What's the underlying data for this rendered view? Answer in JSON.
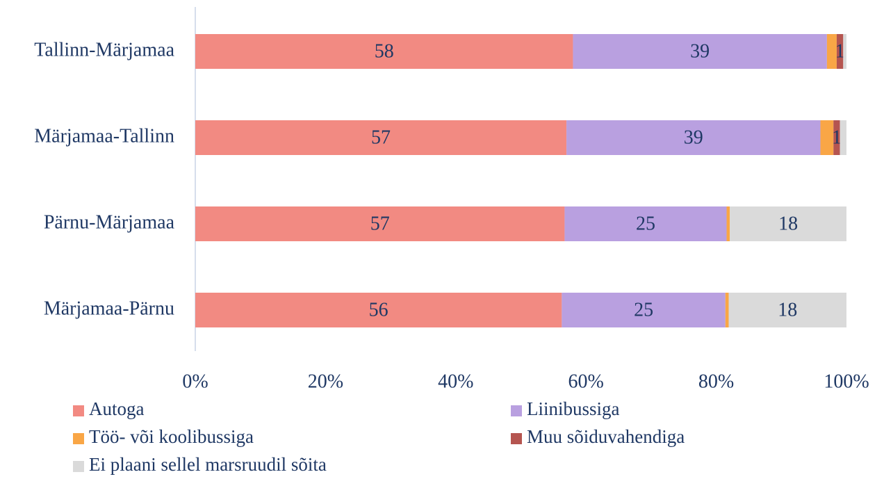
{
  "chart_data": {
    "type": "bar",
    "orientation": "horizontal",
    "stack": "percent",
    "categories": [
      "Tallinn-Märjamaa",
      "Märjamaa-Tallinn",
      "Pärnu-Märjamaa",
      "Märjamaa-Pärnu"
    ],
    "series": [
      {
        "name": "Autoga",
        "color": "#f28a82",
        "values": [
          58,
          57,
          57,
          56
        ],
        "value_labels": [
          "58",
          "57",
          "57",
          "56"
        ]
      },
      {
        "name": "Liinibussiga",
        "color": "#b9a0e0",
        "values": [
          39,
          39,
          25,
          25
        ],
        "value_labels": [
          "39",
          "39",
          "25",
          "25"
        ]
      },
      {
        "name": "Töö- või koolibussiga",
        "color": "#f9a646",
        "values": [
          1.5,
          2,
          0.5,
          0.5
        ],
        "value_labels": [
          null,
          null,
          null,
          null
        ]
      },
      {
        "name": "Muu sõiduvahendiga",
        "color": "#b55550",
        "values": [
          1,
          1,
          0,
          0
        ],
        "value_labels": [
          "1",
          "1",
          null,
          null
        ]
      },
      {
        "name": "Ei plaani sellel marsruudil sõita",
        "color": "#dadada",
        "values": [
          0.5,
          1,
          18,
          18
        ],
        "value_labels": [
          null,
          null,
          "18",
          "18"
        ]
      }
    ],
    "xlim": [
      0,
      100
    ],
    "xticks": [
      {
        "value": 0,
        "label": "0%"
      },
      {
        "value": 20,
        "label": "20%"
      },
      {
        "value": 40,
        "label": "40%"
      },
      {
        "value": 60,
        "label": "60%"
      },
      {
        "value": 80,
        "label": "80%"
      },
      {
        "value": 100,
        "label": "100%"
      }
    ],
    "legend": "bottom"
  }
}
